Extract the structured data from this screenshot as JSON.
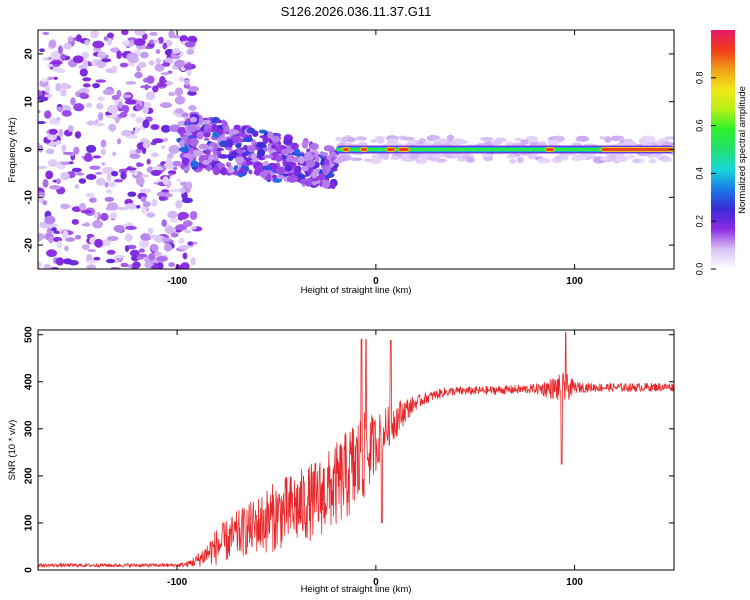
{
  "title": "S126.2026.036.11.37.G11",
  "chart_data": [
    {
      "type": "heatmap",
      "title": "S126.2026.036.11.37.G11",
      "xlabel": "Height of straight line (km)",
      "ylabel": "Frequency (Hz)",
      "xlim": [
        -170,
        150
      ],
      "ylim": [
        -25,
        25
      ],
      "xticks": [
        -100,
        0,
        100
      ],
      "xtick_labels": [
        "-100",
        "0",
        "100"
      ],
      "yticks": [
        -20,
        -10,
        0,
        10,
        20
      ],
      "ytick_labels": [
        "-20",
        "-10",
        "0",
        "10",
        "20"
      ],
      "grid": false,
      "colorbar": {
        "label": "Normalized spectral amplitude",
        "range": [
          0,
          1
        ],
        "ticks": [
          0.0,
          0.2,
          0.4,
          0.6,
          0.8
        ],
        "tick_labels": [
          "0.0",
          "0.2",
          "0.4",
          "0.6",
          "0.8"
        ],
        "colormap": [
          "#ffffff",
          "#d9c2f5",
          "#8b2be2",
          "#3a2ad8",
          "#1a7be8",
          "#18d8d8",
          "#22e070",
          "#2af02a",
          "#b8f018",
          "#f0e818",
          "#f0a018",
          "#f03a18",
          "#e8186c"
        ]
      },
      "features": {
        "noise_region_km": [
          -170,
          -98
        ],
        "diffuse_cluster_km": [
          -98,
          -20
        ],
        "diffuse_cluster_center_hz": [
          2,
          -5
        ],
        "stable_line_km": [
          -20,
          150
        ],
        "stable_line_frequency_hz": 0,
        "strong_segments_km": [
          [
            -17,
            -13
          ],
          [
            -8,
            -4
          ],
          [
            5,
            10
          ],
          [
            11,
            17
          ],
          [
            85,
            90
          ],
          [
            113,
            150
          ]
        ]
      }
    },
    {
      "type": "line",
      "title": "",
      "xlabel": "Height of straight line (km)",
      "ylabel": "SNR (10 * v/v)",
      "xlim": [
        -170,
        150
      ],
      "ylim": [
        0,
        510
      ],
      "xticks": [
        -100,
        0,
        100
      ],
      "xtick_labels": [
        "-100",
        "0",
        "100"
      ],
      "yticks": [
        0,
        100,
        200,
        300,
        400,
        500
      ],
      "ytick_labels": [
        "0",
        "100",
        "200",
        "300",
        "400",
        "500"
      ],
      "grid": false,
      "series": [
        {
          "name": "SNR",
          "color": "#e8262a",
          "envelope": {
            "x": [
              -170,
              -120,
              -100,
              -95,
              -90,
              -85,
              -80,
              -75,
              -70,
              -65,
              -60,
              -55,
              -50,
              -45,
              -40,
              -35,
              -30,
              -25,
              -20,
              -15,
              -10,
              -5,
              0,
              5,
              10,
              15,
              20,
              25,
              30,
              35,
              40,
              60,
              80,
              90,
              95,
              100,
              110,
              130,
              150
            ],
            "y": [
              10,
              10,
              10,
              12,
              20,
              35,
              50,
              62,
              75,
              85,
              95,
              105,
              115,
              125,
              132,
              140,
              150,
              165,
              180,
              200,
              220,
              245,
              270,
              300,
              320,
              340,
              355,
              365,
              372,
              378,
              380,
              382,
              385,
              386,
              386,
              388,
              388,
              388,
              389
            ],
            "noise": [
              4,
              4,
              4,
              6,
              14,
              25,
              40,
              45,
              50,
              55,
              60,
              70,
              75,
              75,
              80,
              80,
              85,
              85,
              90,
              95,
              110,
              90,
              60,
              45,
              40,
              25,
              15,
              12,
              10,
              10,
              9,
              9,
              10,
              25,
              35,
              12,
              9,
              9,
              9
            ]
          },
          "spikes": [
            {
              "x": -7.2,
              "y": 490
            },
            {
              "x": -5.0,
              "y": 490
            },
            {
              "x": 7.5,
              "y": 488
            },
            {
              "x": 3.0,
              "y": 100
            },
            {
              "x": 95.5,
              "y": 505
            },
            {
              "x": 93.5,
              "y": 225
            }
          ]
        }
      ]
    }
  ]
}
